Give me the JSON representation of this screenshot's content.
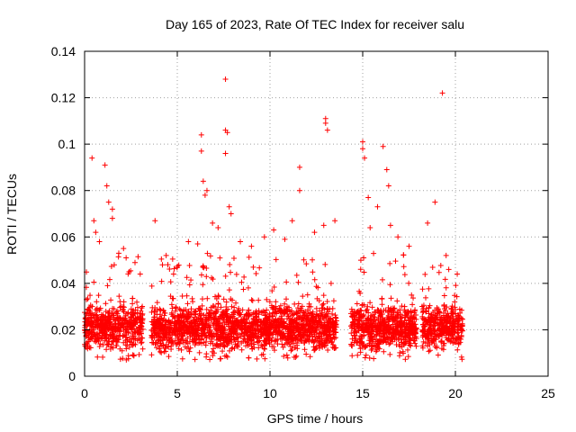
{
  "chart_data": {
    "type": "scatter",
    "title": "Day 165 of 2023, Rate Of TEC Index for receiver salu",
    "xlabel": "GPS time / hours",
    "ylabel": "ROTI / TECUs",
    "xlim": [
      0,
      25
    ],
    "ylim": [
      0,
      0.14
    ],
    "x_ticks": [
      0,
      5,
      10,
      15,
      20,
      25
    ],
    "x_tick_labels": [
      "0",
      "5",
      "10",
      "15",
      "20",
      "25"
    ],
    "y_ticks": [
      0,
      0.02,
      0.04,
      0.06,
      0.08,
      0.1,
      0.12,
      0.14
    ],
    "y_tick_labels": [
      "0",
      "0.02",
      "0.04",
      "0.06",
      "0.08",
      "0.1",
      "0.12",
      "0.14"
    ],
    "grid": true,
    "marker": "+",
    "series": [
      {
        "color": "#ff0000",
        "segments": [
          [
            0.0,
            3.15
          ],
          [
            3.6,
            13.6
          ],
          [
            14.35,
            17.9
          ],
          [
            18.2,
            20.4
          ]
        ],
        "typical_range": [
          0.007,
          0.035
        ],
        "x": [
          0.1,
          0.4,
          0.5,
          0.6,
          0.8,
          1.1,
          1.2,
          1.3,
          1.5,
          1.5,
          1.6,
          2.1,
          2.4,
          3.0,
          3.8,
          4.2,
          4.4,
          4.8,
          5.6,
          6.1,
          6.3,
          6.3,
          6.4,
          6.5,
          6.6,
          6.9,
          7.2,
          7.6,
          7.6,
          7.7,
          7.6,
          7.8,
          7.9,
          8.4,
          9.0,
          9.7,
          10.2,
          10.8,
          11.2,
          11.6,
          11.6,
          12.4,
          12.9,
          13.0,
          13.0,
          13.1,
          13.5,
          14.9,
          15.0,
          15.0,
          15.1,
          15.3,
          15.4,
          15.8,
          16.1,
          16.3,
          16.4,
          16.5,
          16.9,
          17.5,
          18.5,
          18.9,
          19.3,
          19.5,
          20.1
        ],
        "y": [
          0.033,
          0.094,
          0.067,
          0.062,
          0.058,
          0.091,
          0.082,
          0.075,
          0.072,
          0.068,
          0.048,
          0.055,
          0.045,
          0.044,
          0.067,
          0.048,
          0.052,
          0.044,
          0.058,
          0.057,
          0.097,
          0.104,
          0.084,
          0.078,
          0.08,
          0.066,
          0.064,
          0.128,
          0.106,
          0.105,
          0.096,
          0.073,
          0.07,
          0.058,
          0.056,
          0.06,
          0.063,
          0.059,
          0.067,
          0.09,
          0.08,
          0.062,
          0.065,
          0.111,
          0.109,
          0.106,
          0.067,
          0.05,
          0.101,
          0.098,
          0.094,
          0.077,
          0.064,
          0.073,
          0.099,
          0.089,
          0.082,
          0.065,
          0.06,
          0.056,
          0.066,
          0.075,
          0.122,
          0.052,
          0.044
        ]
      }
    ]
  }
}
